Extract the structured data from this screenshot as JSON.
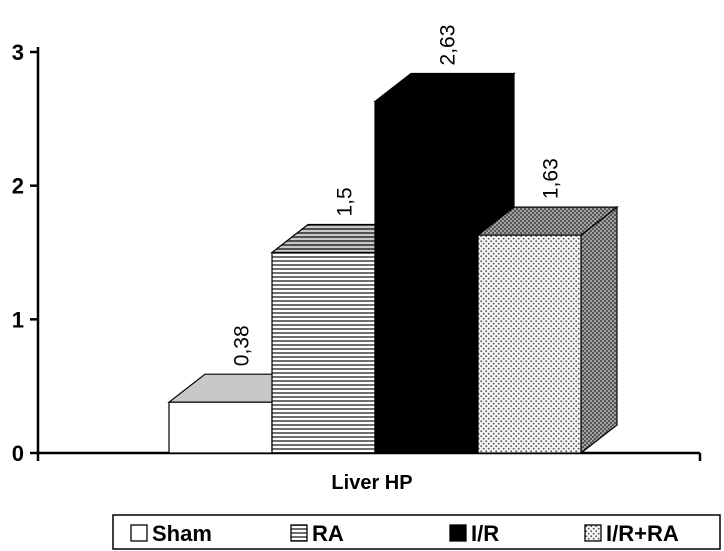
{
  "chart_data": {
    "type": "bar",
    "three_d": true,
    "categories": [
      "Liver HP"
    ],
    "series": [
      {
        "name": "Sham",
        "values": [
          0.38
        ],
        "label": "0,38",
        "fill": "#ffffff",
        "pattern": "none"
      },
      {
        "name": "RA",
        "values": [
          1.5
        ],
        "label": "1,5",
        "fill": "#8c8c8c",
        "pattern": "horizontal-lines"
      },
      {
        "name": "I/R",
        "values": [
          2.63
        ],
        "label": "2,63",
        "fill": "#000000",
        "pattern": "none"
      },
      {
        "name": "I/R+RA",
        "values": [
          1.63
        ],
        "label": "1,63",
        "fill": "#e0e0e0",
        "pattern": "dots"
      }
    ],
    "title": "",
    "xlabel": "",
    "ylabel": "",
    "ylim": [
      0,
      3
    ],
    "yticks": [
      "0",
      "1",
      "2",
      "3"
    ],
    "grid": false,
    "legend_position": "bottom"
  }
}
